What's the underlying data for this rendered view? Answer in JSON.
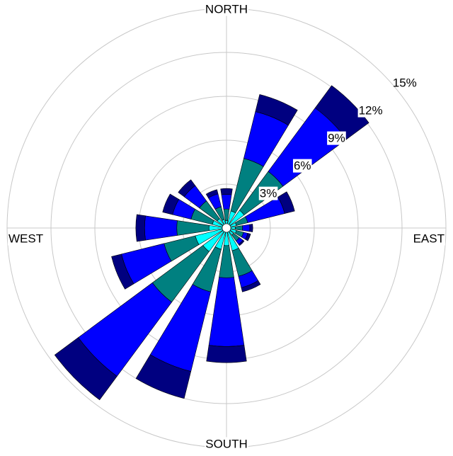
{
  "chart_data": {
    "type": "windrose",
    "categories": [
      "NORTH",
      null,
      null,
      null,
      "EAST",
      null,
      null,
      null,
      "SOUTH",
      null,
      null,
      null,
      "WEST",
      null,
      null,
      null
    ],
    "series": [
      {
        "color": "#00ffff",
        "values": [
          0.5,
          1.2,
          1.5,
          0.7,
          0.6,
          0.7,
          0.6,
          1.6,
          1.2,
          1.5,
          2.0,
          2.2,
          1.2,
          1.0,
          0.8,
          0.6
        ]
      },
      {
        "color": "#008080",
        "values": [
          0.8,
          3.7,
          3.3,
          0.8,
          0.5,
          0.5,
          0.5,
          1.8,
          2.2,
          3.0,
          4.3,
          2.2,
          2.2,
          1.5,
          1.5,
          0.9
        ]
      },
      {
        "color": "#0000ff",
        "values": [
          1.0,
          3.3,
          5.4,
          2.6,
          0.5,
          0.3,
          0.3,
          0.8,
          4.7,
          5.6,
          6.3,
          3.0,
          2.2,
          1.3,
          1.3,
          0.9
        ]
      },
      {
        "color": "#000080",
        "values": [
          0.4,
          1.2,
          1.9,
          0.7,
          0.2,
          0.2,
          0.1,
          0.3,
          1.1,
          1.9,
          2.0,
          0.7,
          0.6,
          0.7,
          0.5,
          0.3
        ]
      }
    ],
    "rlim": [
      0,
      15
    ],
    "rticks": [
      {
        "value": 3,
        "label": "3%"
      },
      {
        "value": 6,
        "label": "6%"
      },
      {
        "value": 9,
        "label": "9%"
      },
      {
        "value": 12,
        "label": "12%"
      },
      {
        "value": 15,
        "label": "15%"
      }
    ],
    "grid": true
  }
}
